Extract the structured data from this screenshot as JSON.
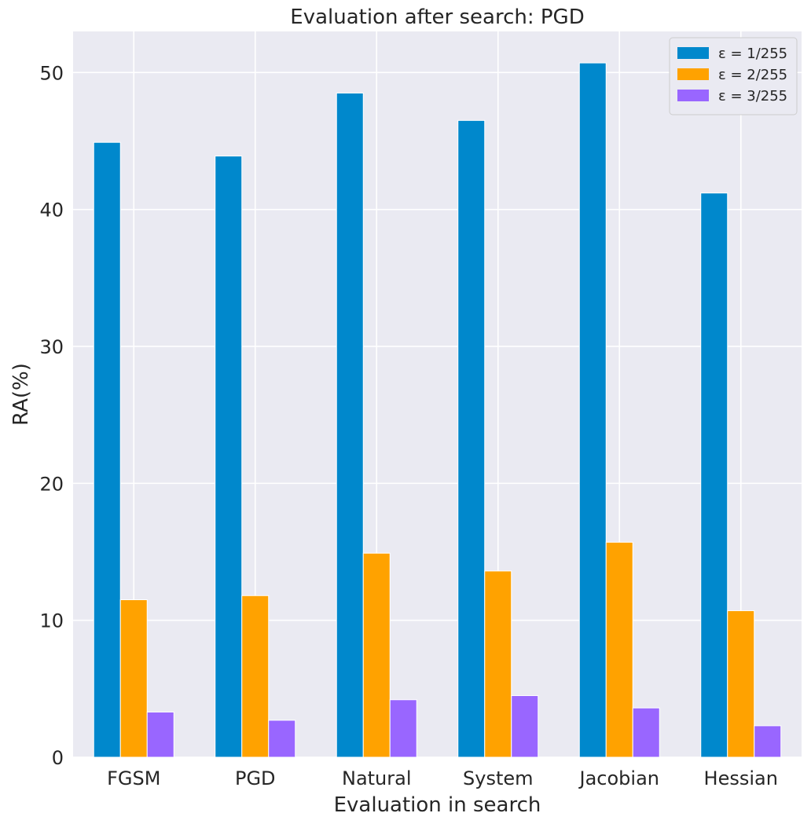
{
  "chart_data": {
    "type": "bar",
    "title": "Evaluation after search: PGD",
    "xlabel": "Evaluation in search",
    "ylabel": "RA(%)",
    "categories": [
      "FGSM",
      "PGD",
      "Natural",
      "System",
      "Jacobian",
      "Hessian"
    ],
    "ylim": [
      0,
      53
    ],
    "yticks": [
      0,
      10,
      20,
      30,
      40,
      50
    ],
    "grid": true,
    "legend_position": "top-right",
    "series": [
      {
        "name": "ε = 1/255",
        "color": "#0088cc",
        "values": [
          44.9,
          43.9,
          48.5,
          46.5,
          50.7,
          41.2
        ]
      },
      {
        "name": "ε = 2/255",
        "color": "#ffa200",
        "values": [
          11.5,
          11.8,
          14.9,
          13.6,
          15.7,
          10.7
        ]
      },
      {
        "name": "ε = 3/255",
        "color": "#9966ff",
        "values": [
          3.3,
          2.7,
          4.2,
          4.5,
          3.6,
          2.3
        ]
      }
    ]
  }
}
